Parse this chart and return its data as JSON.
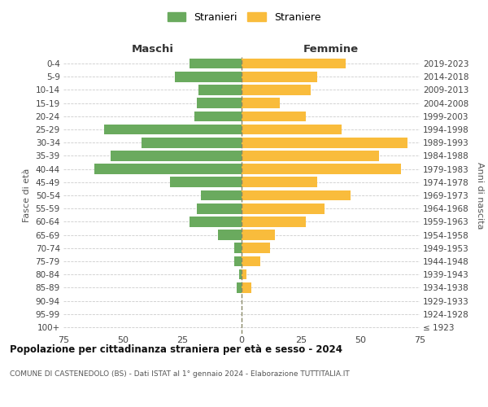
{
  "age_groups": [
    "100+",
    "95-99",
    "90-94",
    "85-89",
    "80-84",
    "75-79",
    "70-74",
    "65-69",
    "60-64",
    "55-59",
    "50-54",
    "45-49",
    "40-44",
    "35-39",
    "30-34",
    "25-29",
    "20-24",
    "15-19",
    "10-14",
    "5-9",
    "0-4"
  ],
  "birth_years": [
    "≤ 1923",
    "1924-1928",
    "1929-1933",
    "1934-1938",
    "1939-1943",
    "1944-1948",
    "1949-1953",
    "1954-1958",
    "1959-1963",
    "1964-1968",
    "1969-1973",
    "1974-1978",
    "1979-1983",
    "1984-1988",
    "1989-1993",
    "1994-1998",
    "1999-2003",
    "2004-2008",
    "2009-2013",
    "2014-2018",
    "2019-2023"
  ],
  "maschi": [
    0,
    0,
    0,
    2,
    1,
    3,
    3,
    10,
    22,
    19,
    17,
    30,
    62,
    55,
    42,
    58,
    20,
    19,
    18,
    28,
    22
  ],
  "femmine": [
    0,
    0,
    0,
    4,
    2,
    8,
    12,
    14,
    27,
    35,
    46,
    32,
    67,
    58,
    70,
    42,
    27,
    16,
    29,
    32,
    44
  ],
  "maschi_color": "#6aaa5e",
  "femmine_color": "#f9bc3c",
  "background_color": "#ffffff",
  "grid_color": "#cccccc",
  "center_line_color": "#888866",
  "xlim": 75,
  "title": "Popolazione per cittadinanza straniera per età e sesso - 2024",
  "subtitle": "COMUNE DI CASTENEDOLO (BS) - Dati ISTAT al 1° gennaio 2024 - Elaborazione TUTTITALIA.IT",
  "xlabel_left": "Maschi",
  "xlabel_right": "Femmine",
  "ylabel_left": "Fasce di età",
  "ylabel_right": "Anni di nascita",
  "legend_stranieri": "Stranieri",
  "legend_straniere": "Straniere"
}
